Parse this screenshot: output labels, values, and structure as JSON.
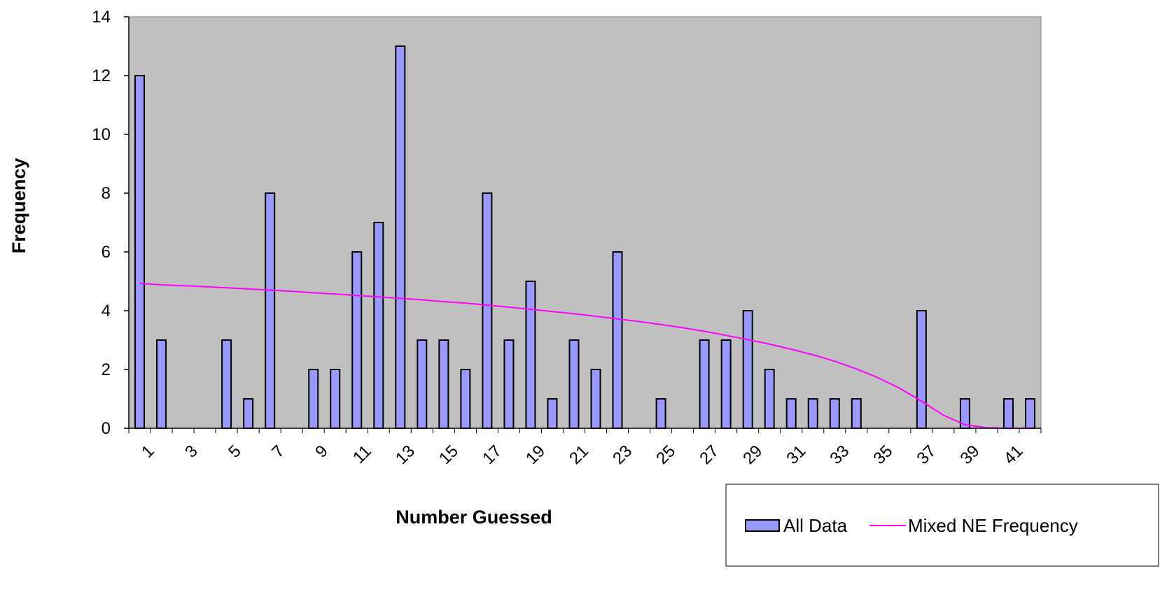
{
  "chart_data": {
    "type": "bar",
    "title": "",
    "xlabel": "Number Guessed",
    "ylabel": "Frequency",
    "ylim": [
      0,
      14
    ],
    "yticks": [
      0,
      2,
      4,
      6,
      8,
      10,
      12,
      14
    ],
    "x": [
      1,
      2,
      3,
      4,
      5,
      6,
      7,
      8,
      9,
      10,
      11,
      12,
      13,
      14,
      15,
      16,
      17,
      18,
      19,
      20,
      21,
      22,
      23,
      24,
      25,
      26,
      27,
      28,
      29,
      30,
      31,
      32,
      33,
      34,
      35,
      36,
      37,
      38,
      39,
      40,
      41,
      42
    ],
    "xtick_labels": [
      1,
      3,
      5,
      7,
      9,
      11,
      13,
      15,
      17,
      19,
      21,
      23,
      25,
      27,
      29,
      31,
      33,
      35,
      37,
      39,
      41
    ],
    "grid": false,
    "legend_position": "bottom-right",
    "series": [
      {
        "name": "All Data",
        "type": "bar",
        "color": "#9999ff",
        "values": [
          12,
          3,
          0,
          0,
          3,
          1,
          8,
          0,
          2,
          2,
          6,
          7,
          13,
          3,
          3,
          2,
          8,
          3,
          5,
          1,
          3,
          2,
          6,
          0,
          1,
          0,
          3,
          3,
          4,
          2,
          1,
          1,
          1,
          1,
          0,
          0,
          4,
          0,
          1,
          0,
          1,
          1
        ]
      },
      {
        "name": "Mixed NE Frequency",
        "type": "line",
        "color": "#ff00ff",
        "values": [
          4.93,
          4.88,
          4.85,
          4.82,
          4.78,
          4.74,
          4.7,
          4.66,
          4.61,
          4.57,
          4.52,
          4.47,
          4.42,
          4.37,
          4.31,
          4.26,
          4.19,
          4.12,
          4.05,
          3.97,
          3.9,
          3.81,
          3.72,
          3.63,
          3.53,
          3.42,
          3.3,
          3.16,
          3.02,
          2.86,
          2.69,
          2.5,
          2.28,
          2.02,
          1.72,
          1.36,
          0.92,
          0.45,
          0.12,
          0.02,
          0.0,
          0.0
        ]
      }
    ]
  },
  "colors": {
    "plot_background": "#c0c0c0",
    "bar_fill": "#9999ff",
    "line": "#ff00ff"
  }
}
